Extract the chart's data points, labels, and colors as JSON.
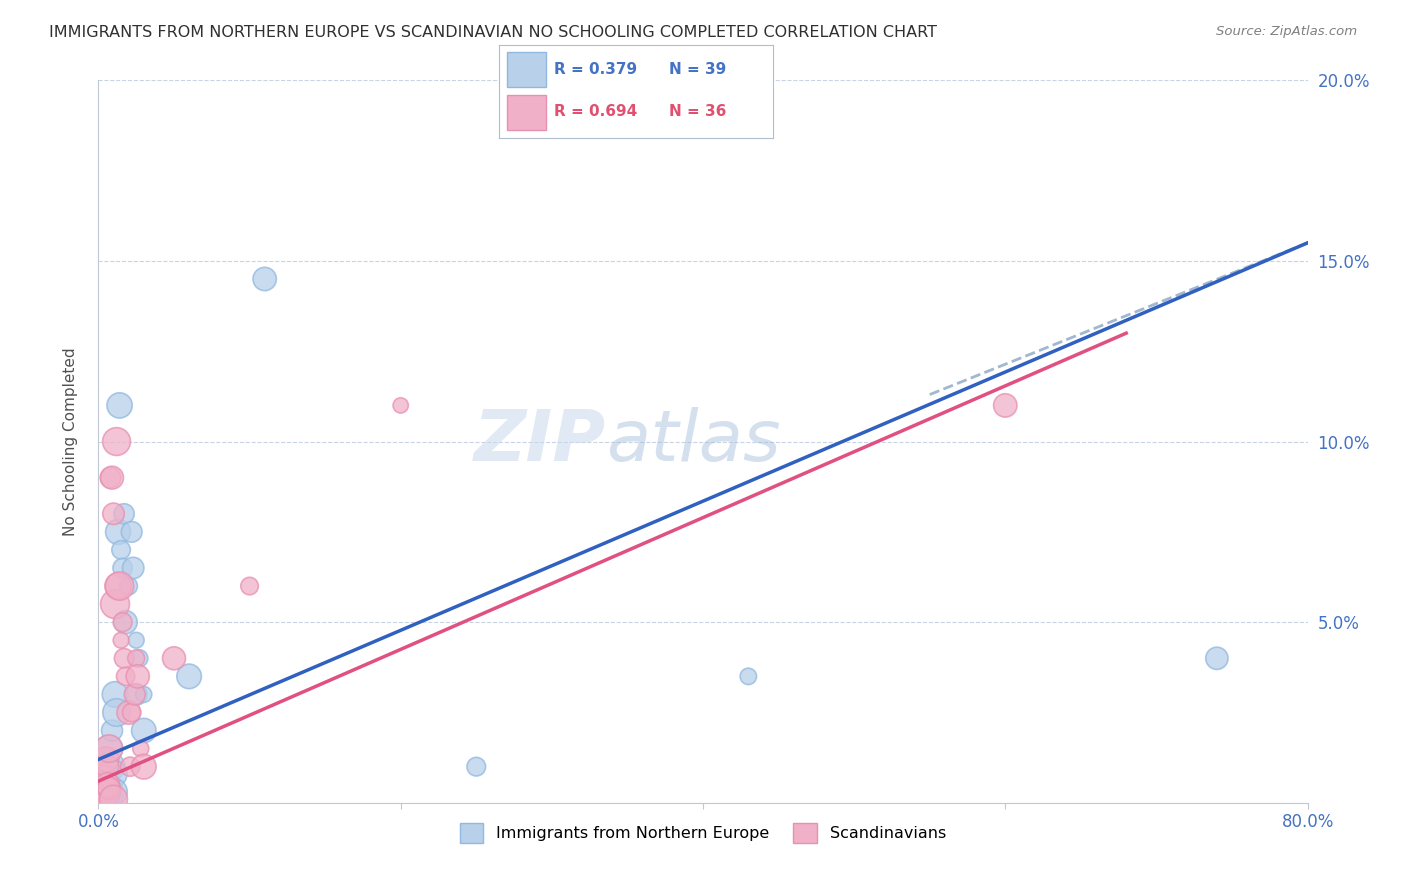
{
  "title": "IMMIGRANTS FROM NORTHERN EUROPE VS SCANDINAVIAN NO SCHOOLING COMPLETED CORRELATION CHART",
  "source": "Source: ZipAtlas.com",
  "ylabel": "No Schooling Completed",
  "xlim": [
    0,
    0.8
  ],
  "ylim": [
    0,
    0.2
  ],
  "xticks": [
    0.0,
    0.2,
    0.4,
    0.6,
    0.8
  ],
  "yticks": [
    0.0,
    0.05,
    0.1,
    0.15,
    0.2
  ],
  "xtick_labels": [
    "0.0%",
    "",
    "",
    "",
    "80.0%"
  ],
  "ytick_labels_right": [
    "",
    "5.0%",
    "10.0%",
    "15.0%",
    "20.0%"
  ],
  "legend_label1": "Immigrants from Northern Europe",
  "legend_label2": "Scandinavians",
  "R1": "0.379",
  "N1": "39",
  "R2": "0.694",
  "N2": "36",
  "blue_color": "#b8d0ea",
  "pink_color": "#f0b0c8",
  "blue_edge_color": "#90b8e0",
  "pink_edge_color": "#e890b0",
  "blue_line_color": "#3060c0",
  "pink_line_color": "#e05080",
  "dash_line_color": "#a0b8d0",
  "blue_r_color": "#4472c4",
  "pink_r_color": "#e05070",
  "watermark_color": "#ccd8ec",
  "background_color": "#ffffff",
  "grid_color": "#c8d4e4",
  "title_color": "#303030",
  "tick_color": "#4472c4",
  "blue_scatter": [
    [
      0.001,
      0.002
    ],
    [
      0.002,
      0.004
    ],
    [
      0.002,
      0.001
    ],
    [
      0.003,
      0.006
    ],
    [
      0.003,
      0.003
    ],
    [
      0.004,
      0.01
    ],
    [
      0.004,
      0.005
    ],
    [
      0.005,
      0.008
    ],
    [
      0.005,
      0.003
    ],
    [
      0.006,
      0.012
    ],
    [
      0.006,
      0.006
    ],
    [
      0.007,
      0.015
    ],
    [
      0.007,
      0.004
    ],
    [
      0.008,
      0.01
    ],
    [
      0.008,
      0.002
    ],
    [
      0.009,
      0.02
    ],
    [
      0.01,
      0.008
    ],
    [
      0.01,
      0.003
    ],
    [
      0.011,
      0.03
    ],
    [
      0.012,
      0.025
    ],
    [
      0.013,
      0.075
    ],
    [
      0.014,
      0.11
    ],
    [
      0.015,
      0.07
    ],
    [
      0.016,
      0.065
    ],
    [
      0.017,
      0.08
    ],
    [
      0.018,
      0.05
    ],
    [
      0.02,
      0.06
    ],
    [
      0.022,
      0.075
    ],
    [
      0.023,
      0.065
    ],
    [
      0.025,
      0.045
    ],
    [
      0.025,
      0.03
    ],
    [
      0.027,
      0.04
    ],
    [
      0.03,
      0.03
    ],
    [
      0.03,
      0.02
    ],
    [
      0.06,
      0.035
    ],
    [
      0.11,
      0.145
    ],
    [
      0.25,
      0.01
    ],
    [
      0.43,
      0.035
    ],
    [
      0.74,
      0.04
    ]
  ],
  "pink_scatter": [
    [
      0.001,
      0.003
    ],
    [
      0.002,
      0.005
    ],
    [
      0.002,
      0.002
    ],
    [
      0.003,
      0.008
    ],
    [
      0.003,
      0.004
    ],
    [
      0.004,
      0.007
    ],
    [
      0.005,
      0.012
    ],
    [
      0.005,
      0.003
    ],
    [
      0.006,
      0.01
    ],
    [
      0.006,
      0.005
    ],
    [
      0.007,
      0.015
    ],
    [
      0.007,
      0.004
    ],
    [
      0.008,
      0.09
    ],
    [
      0.009,
      0.09
    ],
    [
      0.01,
      0.08
    ],
    [
      0.011,
      0.055
    ],
    [
      0.012,
      0.1
    ],
    [
      0.013,
      0.06
    ],
    [
      0.014,
      0.06
    ],
    [
      0.015,
      0.045
    ],
    [
      0.016,
      0.05
    ],
    [
      0.017,
      0.04
    ],
    [
      0.018,
      0.035
    ],
    [
      0.02,
      0.025
    ],
    [
      0.021,
      0.01
    ],
    [
      0.022,
      0.025
    ],
    [
      0.024,
      0.03
    ],
    [
      0.025,
      0.04
    ],
    [
      0.026,
      0.035
    ],
    [
      0.028,
      0.015
    ],
    [
      0.03,
      0.01
    ],
    [
      0.05,
      0.04
    ],
    [
      0.1,
      0.06
    ],
    [
      0.2,
      0.11
    ],
    [
      0.6,
      0.11
    ],
    [
      0.01,
      0.001
    ]
  ],
  "blue_line": {
    "x0": 0.0,
    "y0": 0.012,
    "x1": 0.8,
    "y1": 0.155
  },
  "pink_line": {
    "x0": 0.0,
    "y0": 0.006,
    "x1": 0.68,
    "y1": 0.13
  },
  "dash_line": {
    "x0": 0.55,
    "y0": 0.113,
    "x1": 0.8,
    "y1": 0.155
  }
}
